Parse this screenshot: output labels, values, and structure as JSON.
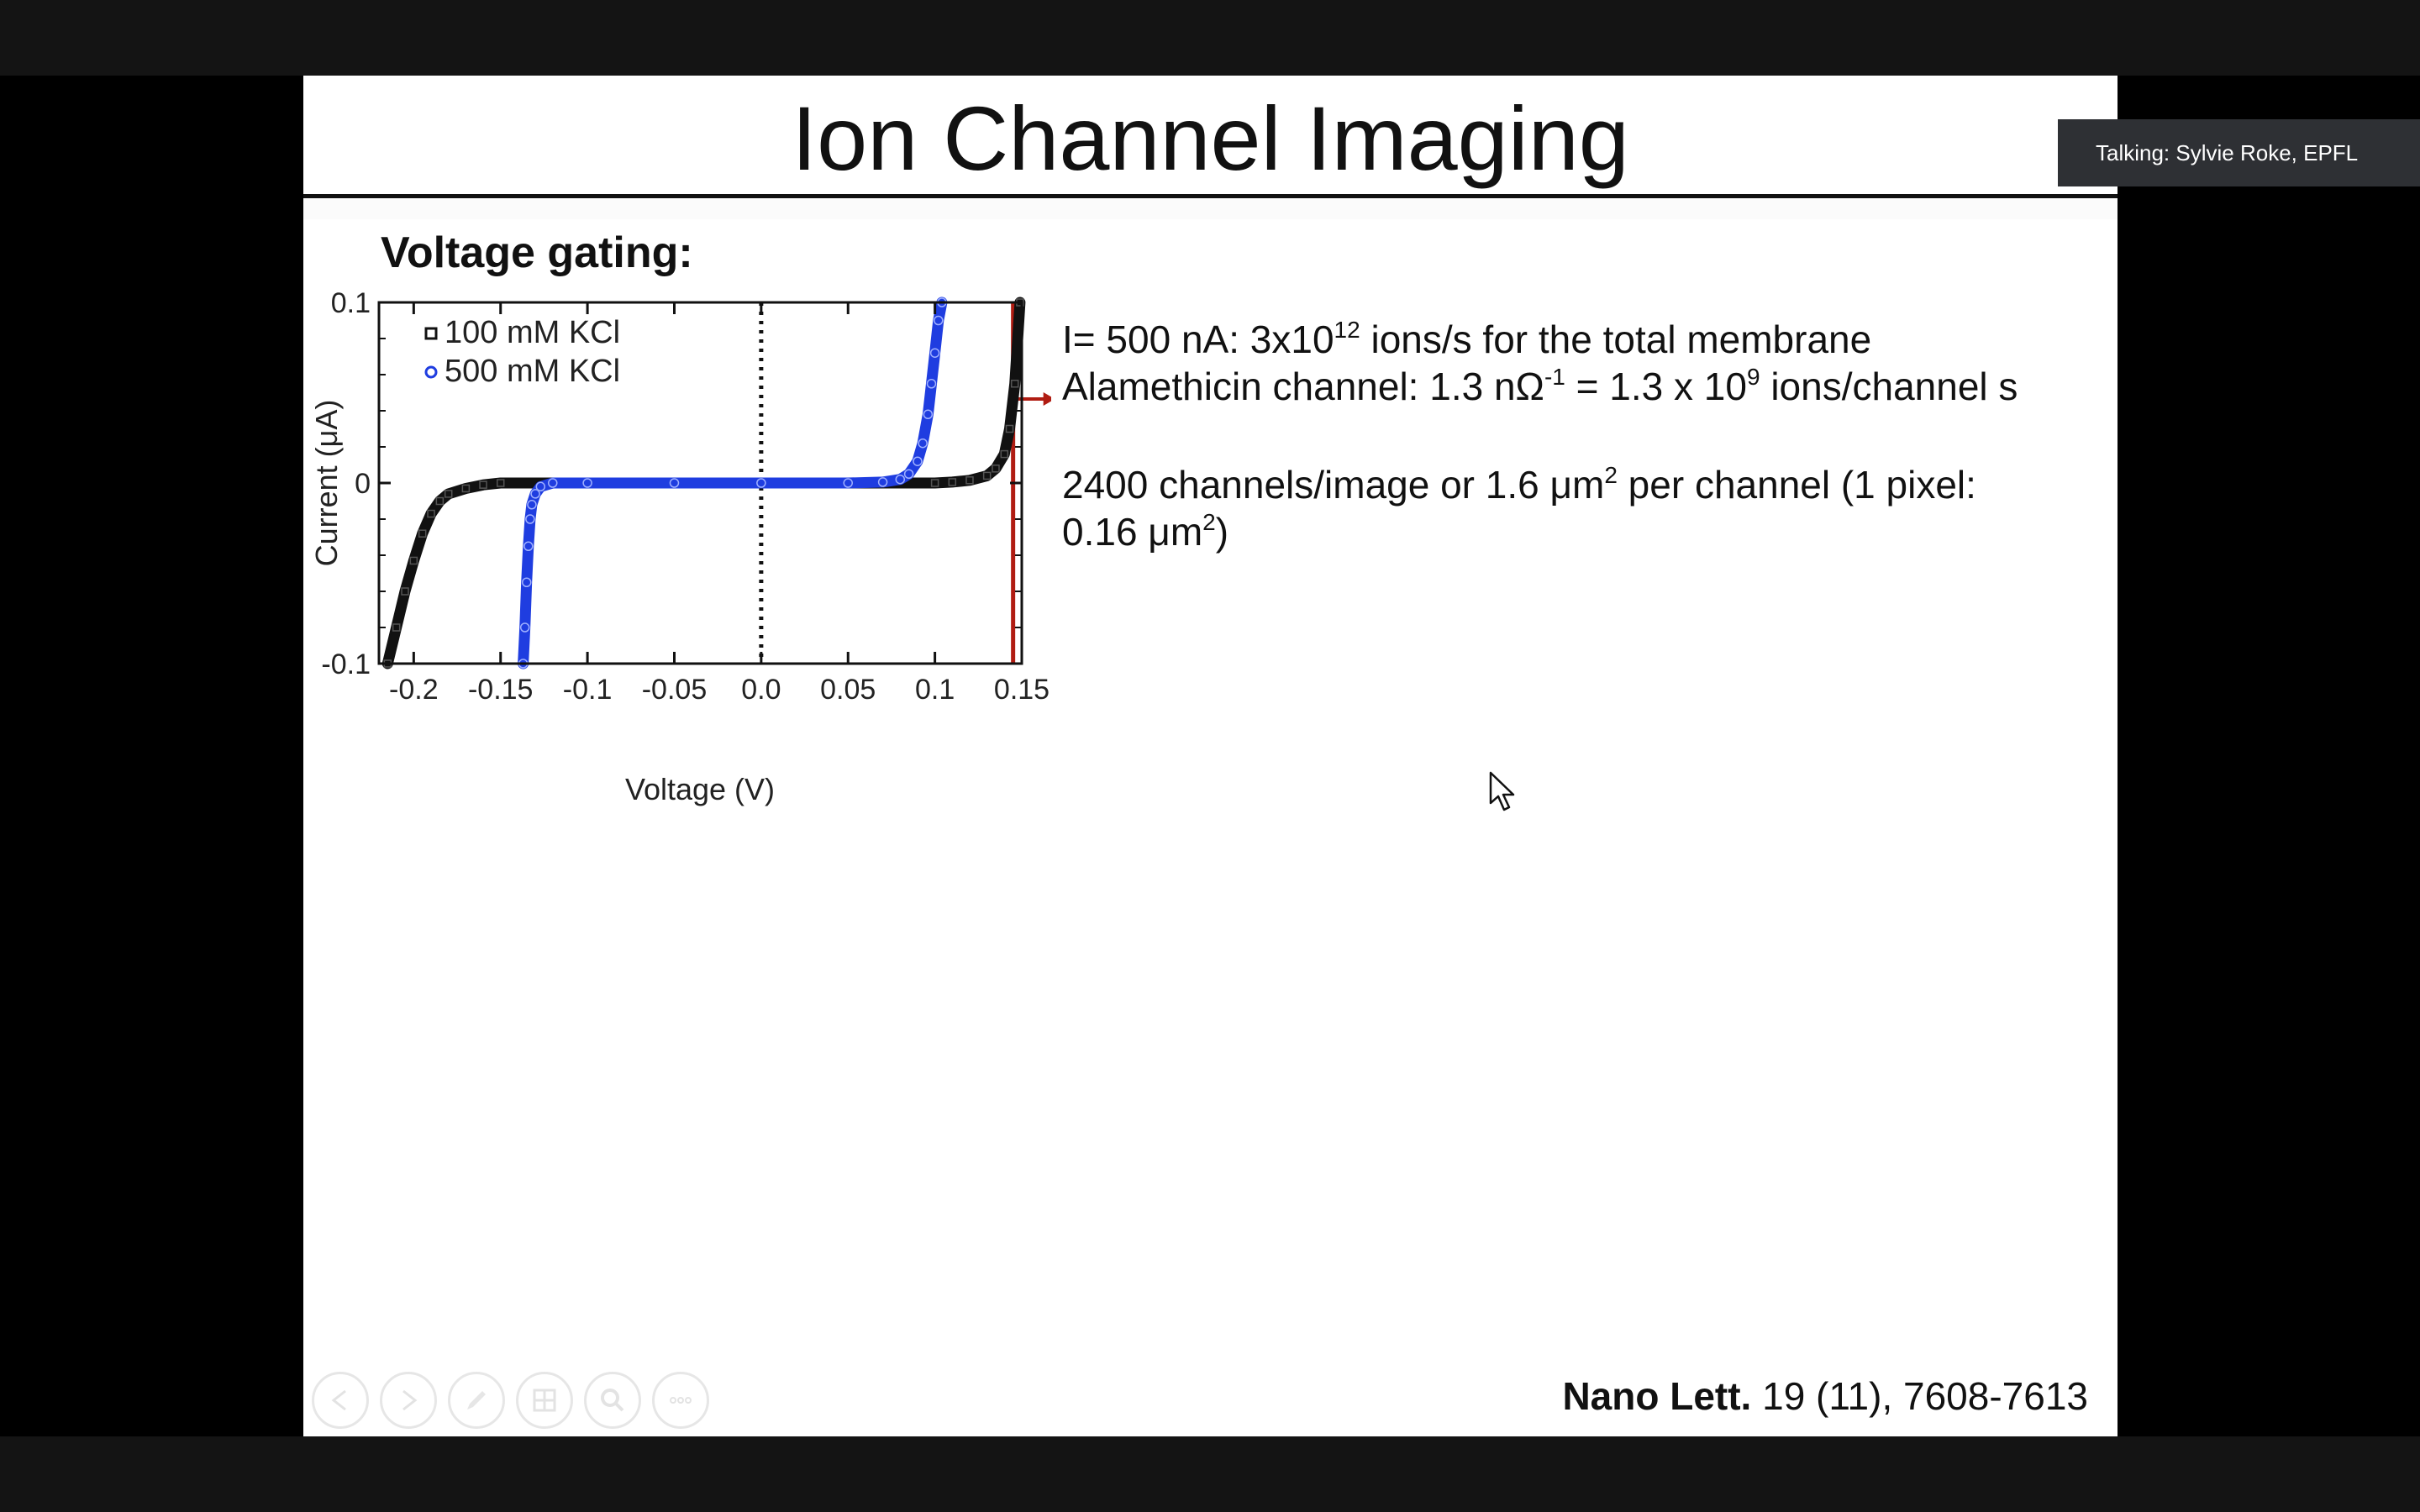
{
  "slide": {
    "title": "Ion Channel Imaging",
    "heading": "Voltage gating:",
    "notes": {
      "line1": {
        "pre": "I= 500 nA: 3x10",
        "sup": "12",
        "post": " ions/s for the total membrane"
      },
      "line2": {
        "pre": "Alamethicin channel: 1.3 nΩ",
        "sup1": "-1",
        "mid": " = 1.3 x 10",
        "sup2": "9",
        "post": " ions/channel s"
      },
      "line3": {
        "pre": "2400 channels/image or 1.6 μm",
        "sup": "2",
        "post": " per channel (1 pixel:"
      },
      "line4": {
        "pre": "0.16 μm",
        "sup": "2",
        "post": ")"
      }
    },
    "citation": {
      "journal": "Nano Lett.",
      "ref": " 19 (11), 7608-7613"
    }
  },
  "chart_data": {
    "type": "scatter",
    "xlabel": "Voltage (V)",
    "ylabel": "Current (μA)",
    "xlim": [
      -0.22,
      0.15
    ],
    "ylim": [
      -0.1,
      0.1
    ],
    "x_ticks": [
      -0.2,
      -0.15,
      -0.1,
      -0.05,
      0.0,
      0.05,
      0.1,
      0.15
    ],
    "x_tick_labels": [
      "-0.2",
      "-0.15",
      "-0.1",
      "-0.05",
      "0.0",
      "0.05",
      "0.1",
      "0.15"
    ],
    "y_ticks": [
      -0.1,
      0,
      0.1
    ],
    "y_tick_labels": [
      "-0.1",
      "0",
      "0.1"
    ],
    "legend_position": "top-left",
    "reference_lines": {
      "zero_voltage": 0.0,
      "marker_voltage": 0.145
    },
    "series": [
      {
        "name": "100 mM KCl",
        "color": "#111111",
        "marker": "square",
        "x": [
          -0.215,
          -0.21,
          -0.205,
          -0.2,
          -0.195,
          -0.19,
          -0.185,
          -0.18,
          -0.17,
          -0.16,
          -0.15,
          -0.1,
          -0.05,
          0.0,
          0.05,
          0.1,
          0.11,
          0.12,
          0.13,
          0.135,
          0.14,
          0.143,
          0.146,
          0.149
        ],
        "y": [
          -0.1,
          -0.08,
          -0.06,
          -0.043,
          -0.028,
          -0.017,
          -0.01,
          -0.006,
          -0.003,
          -0.001,
          0.0,
          0.0,
          0.0,
          0.0,
          0.0,
          0.0,
          0.0005,
          0.0015,
          0.004,
          0.008,
          0.016,
          0.03,
          0.055,
          0.1
        ]
      },
      {
        "name": "500 mM KCl",
        "color": "#1f3de0",
        "marker": "circle",
        "x": [
          -0.137,
          -0.136,
          -0.135,
          -0.134,
          -0.133,
          -0.132,
          -0.13,
          -0.127,
          -0.12,
          -0.1,
          -0.05,
          0.0,
          0.05,
          0.07,
          0.08,
          0.085,
          0.09,
          0.093,
          0.096,
          0.098,
          0.1,
          0.102,
          0.104
        ],
        "y": [
          -0.1,
          -0.08,
          -0.055,
          -0.035,
          -0.02,
          -0.012,
          -0.006,
          -0.002,
          0.0,
          0.0,
          0.0,
          0.0,
          0.0,
          0.0005,
          0.002,
          0.005,
          0.012,
          0.022,
          0.038,
          0.055,
          0.072,
          0.09,
          0.1
        ]
      }
    ]
  },
  "controls": [
    {
      "name": "previous-slide-button",
      "icon": "arrow-left-icon"
    },
    {
      "name": "next-slide-button",
      "icon": "arrow-right-icon"
    },
    {
      "name": "pen-tool-button",
      "icon": "pen-icon"
    },
    {
      "name": "slide-grid-button",
      "icon": "grid-icon"
    },
    {
      "name": "zoom-button",
      "icon": "magnifier-icon"
    },
    {
      "name": "more-options-button",
      "icon": "ellipsis-icon"
    }
  ],
  "speaker": {
    "label": "Talking: Sylvie Roke, EPFL"
  }
}
